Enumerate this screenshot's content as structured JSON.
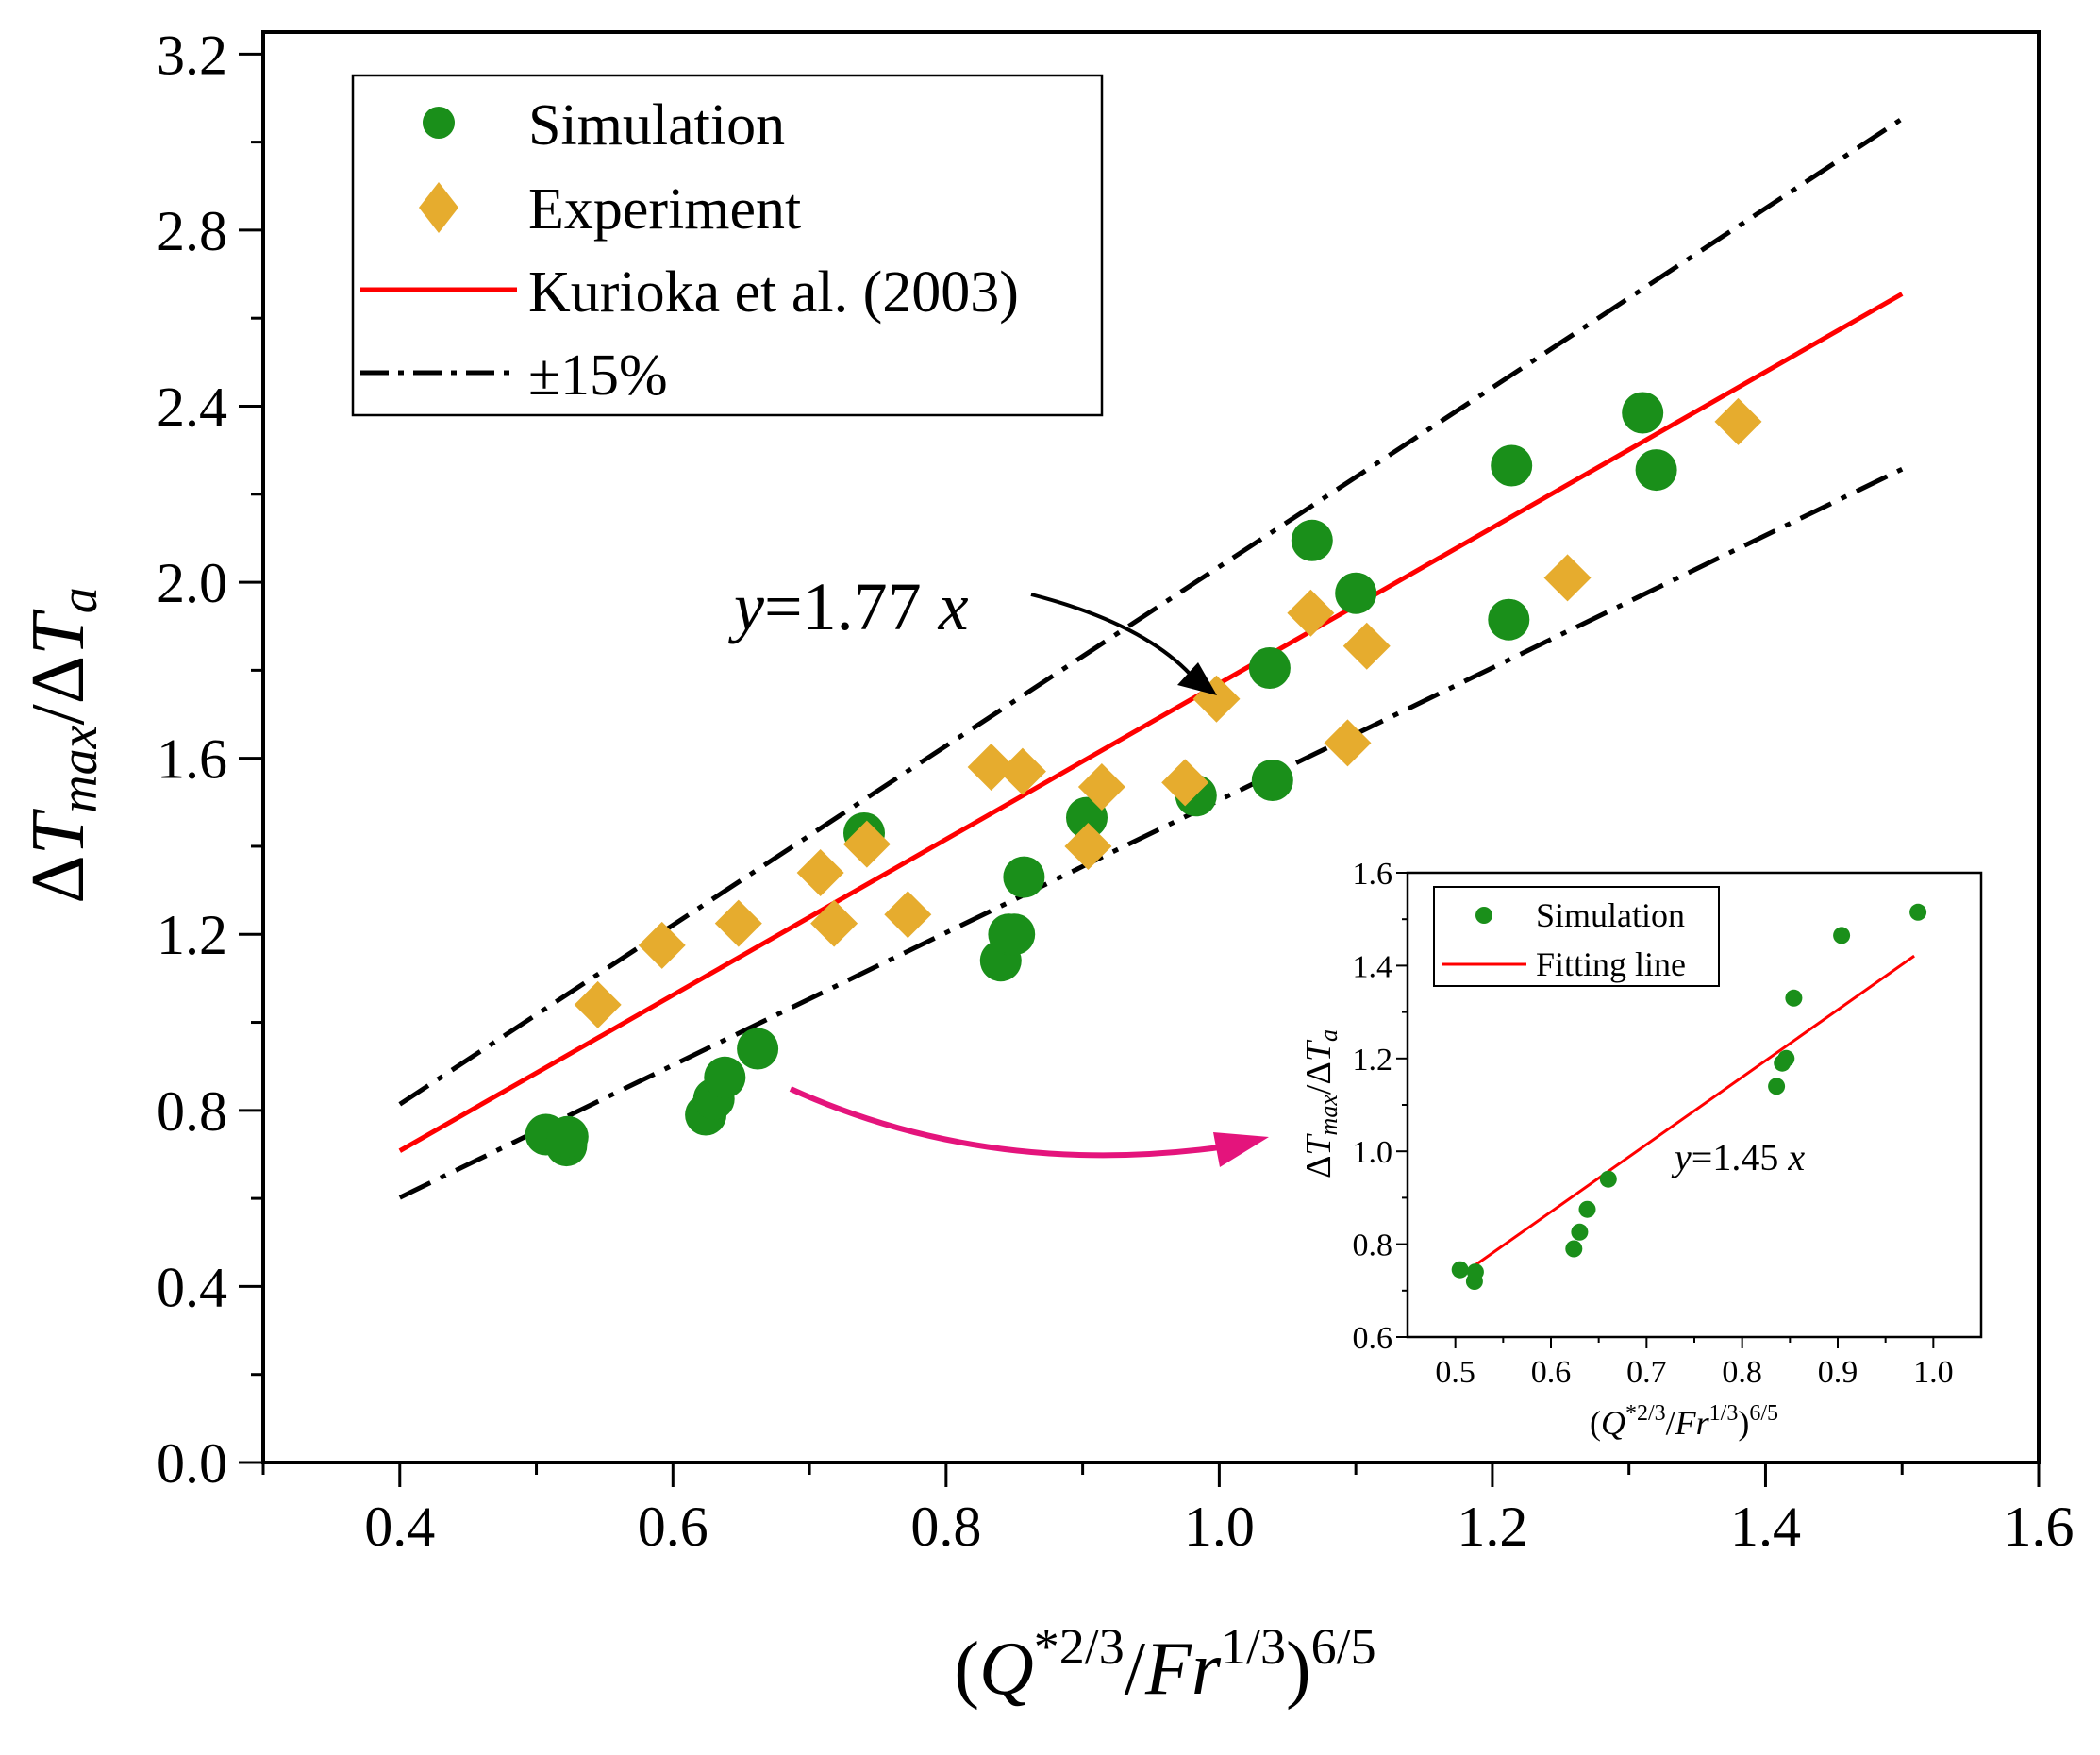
{
  "chart_data": [
    {
      "type": "scatter",
      "title": "",
      "xlabel": {
        "pre": "(",
        "var": "Q",
        "sup1": "*2/3",
        "mid": "/",
        "var2": "Fr",
        "sup2": "1/3",
        "post": ")",
        "sup3": "6/5"
      },
      "ylabel": {
        "delta1": "Δ",
        "var1": "T",
        "sub1": "max",
        "slash": "/",
        "delta2": "Δ",
        "var2": "T",
        "sub2": "a"
      },
      "xlim": [
        0.3,
        1.6
      ],
      "ylim": [
        0.0,
        3.25
      ],
      "xticks": [
        "0.4",
        "0.6",
        "0.8",
        "1.0",
        "1.2",
        "1.4",
        "1.6"
      ],
      "yticks": [
        "0.0",
        "0.4",
        "0.8",
        "1.2",
        "1.6",
        "2.0",
        "2.4",
        "2.8",
        "3.2"
      ],
      "grid": false,
      "legend_position": "top-left",
      "series": [
        {
          "name": "Simulation",
          "kind": "scatter",
          "marker": "circle",
          "color": "#1a8f1a",
          "points": [
            [
              0.507,
              0.745
            ],
            [
              0.522,
              0.72
            ],
            [
              0.523,
              0.74
            ],
            [
              0.624,
              0.79
            ],
            [
              0.63,
              0.826
            ],
            [
              0.638,
              0.875
            ],
            [
              0.662,
              0.94
            ],
            [
              0.74,
              1.43
            ],
            [
              0.84,
              1.14
            ],
            [
              0.846,
              1.2
            ],
            [
              0.85,
              1.2
            ],
            [
              0.857,
              1.33
            ],
            [
              0.903,
              1.465
            ],
            [
              0.983,
              1.515
            ],
            [
              1.037,
              1.805
            ],
            [
              1.039,
              1.55
            ],
            [
              1.068,
              2.095
            ],
            [
              1.1,
              1.975
            ],
            [
              1.212,
              1.915
            ],
            [
              1.214,
              2.265
            ],
            [
              1.31,
              2.385
            ],
            [
              1.32,
              2.255
            ]
          ]
        },
        {
          "name": "Experiment",
          "kind": "scatter",
          "marker": "diamond",
          "color": "#e6ac2e",
          "points": [
            [
              0.545,
              1.04
            ],
            [
              0.592,
              1.175
            ],
            [
              0.648,
              1.225
            ],
            [
              0.708,
              1.34
            ],
            [
              0.718,
              1.225
            ],
            [
              0.742,
              1.405
            ],
            [
              0.772,
              1.245
            ],
            [
              0.833,
              1.58
            ],
            [
              0.856,
              1.57
            ],
            [
              0.904,
              1.4
            ],
            [
              0.914,
              1.535
            ],
            [
              0.975,
              1.545
            ],
            [
              0.998,
              1.735
            ],
            [
              1.067,
              1.93
            ],
            [
              1.094,
              1.635
            ],
            [
              1.108,
              1.855
            ],
            [
              1.255,
              2.01
            ],
            [
              1.38,
              2.365
            ]
          ]
        },
        {
          "name": "Kurioka et al. (2003)",
          "kind": "line",
          "style": "solid",
          "color": "#ff0000",
          "points": [
            [
              0.4,
              0.708
            ],
            [
              1.5,
              2.655
            ]
          ]
        },
        {
          "name": "±15%",
          "kind": "line",
          "style": "dash-dot",
          "color": "#000000",
          "points": [
            [
              0.4,
              0.814
            ],
            [
              1.5,
              3.053
            ]
          ]
        },
        {
          "name": "",
          "kind": "line",
          "style": "dash-dot",
          "color": "#000000",
          "points": [
            [
              0.4,
              0.602
            ],
            [
              1.5,
              2.257
            ]
          ]
        }
      ],
      "annotations": [
        {
          "var": "y",
          "text": "=1.77 ",
          "var2": "x"
        }
      ]
    },
    {
      "type": "scatter",
      "title": "",
      "xlabel": {
        "pre": "(",
        "var": "Q",
        "sup1": "*2/3",
        "mid": "/",
        "var2": "Fr",
        "sup2": "1/3",
        "post": ")",
        "sup3": "6/5"
      },
      "ylabel": {
        "delta1": "Δ",
        "var1": "T",
        "sub1": "max",
        "slash": "/",
        "delta2": "Δ",
        "var2": "T",
        "sub2": "a"
      },
      "xlim": [
        0.45,
        1.05
      ],
      "ylim": [
        0.6,
        1.6
      ],
      "xticks": [
        "0.5",
        "0.6",
        "0.7",
        "0.8",
        "0.9",
        "1.0"
      ],
      "yticks": [
        "0.6",
        "0.8",
        "1.0",
        "1.2",
        "1.4",
        "1.6"
      ],
      "grid": false,
      "legend_position": "top-left",
      "series": [
        {
          "name": "Simulation",
          "kind": "scatter",
          "marker": "circle",
          "color": "#1a8f1a",
          "points": [
            [
              0.505,
              0.745
            ],
            [
              0.52,
              0.72
            ],
            [
              0.521,
              0.74
            ],
            [
              0.624,
              0.79
            ],
            [
              0.63,
              0.826
            ],
            [
              0.638,
              0.875
            ],
            [
              0.66,
              0.94
            ],
            [
              0.836,
              1.14
            ],
            [
              0.842,
              1.19
            ],
            [
              0.846,
              1.2
            ],
            [
              0.854,
              1.33
            ],
            [
              0.904,
              1.465
            ],
            [
              0.984,
              1.515
            ]
          ]
        },
        {
          "name": "Fitting line",
          "kind": "line",
          "style": "solid",
          "color": "#ff0000",
          "points": [
            [
              0.505,
              0.732
            ],
            [
              0.98,
              1.421
            ]
          ]
        }
      ],
      "annotations": [
        {
          "var": "y",
          "text": "=1.45 ",
          "var2": "x"
        }
      ]
    }
  ]
}
